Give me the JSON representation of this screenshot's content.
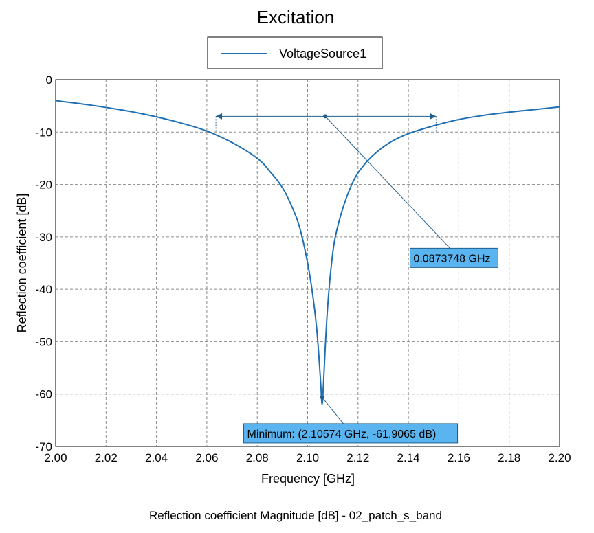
{
  "chart_data": {
    "type": "line",
    "title": "Excitation",
    "xlabel": "Frequency [GHz]",
    "ylabel": "Reflection coefficient [dB]",
    "caption": "Reflection coefficient Magnitude [dB] - 02_patch_s_band",
    "xlim": [
      2.0,
      2.2
    ],
    "ylim": [
      -70,
      0
    ],
    "xticks": [
      2.0,
      2.02,
      2.04,
      2.06,
      2.08,
      2.1,
      2.12,
      2.14,
      2.16,
      2.18,
      2.2
    ],
    "xtick_labels": [
      "2.00",
      "2.02",
      "2.04",
      "2.06",
      "2.08",
      "2.10",
      "2.12",
      "2.14",
      "2.16",
      "2.18",
      "2.20"
    ],
    "yticks": [
      0,
      -10,
      -20,
      -30,
      -40,
      -50,
      -60,
      -70
    ],
    "ytick_labels": [
      "0",
      "-10",
      "-20",
      "-30",
      "-40",
      "-50",
      "-60",
      "-70"
    ],
    "grid": true,
    "legend": {
      "placement": "top-center",
      "entries": [
        "VoltageSource1"
      ]
    },
    "series": [
      {
        "name": "VoltageSource1",
        "color": "#1f6fb5",
        "x": [
          2.0,
          2.01,
          2.02,
          2.03,
          2.04,
          2.05,
          2.06,
          2.07,
          2.08,
          2.085,
          2.09,
          2.094,
          2.097,
          2.1,
          2.102,
          2.1035,
          2.1045,
          2.1052,
          2.10574,
          2.1063,
          2.107,
          2.108,
          2.1095,
          2.111,
          2.114,
          2.118,
          2.122,
          2.127,
          2.133,
          2.14,
          2.15,
          2.16,
          2.17,
          2.18,
          2.19,
          2.2
        ],
        "y": [
          -4.0,
          -4.6,
          -5.3,
          -6.1,
          -7.1,
          -8.3,
          -9.8,
          -12.0,
          -15.0,
          -17.5,
          -20.6,
          -24.5,
          -28.5,
          -35.0,
          -41.0,
          -47.0,
          -53.0,
          -58.0,
          -61.9065,
          -58.0,
          -51.0,
          -43.0,
          -35.0,
          -30.0,
          -24.5,
          -19.5,
          -16.5,
          -14.0,
          -11.9,
          -10.3,
          -8.8,
          -7.6,
          -6.8,
          -6.2,
          -5.7,
          -5.2
        ]
      }
    ],
    "bandwidth_marker": {
      "x_start": 2.0636,
      "x_end": 2.151,
      "y": -7.0,
      "anchor_x": 2.107,
      "label": "0.0873748 GHz",
      "label_x": 2.142,
      "label_y": -34.0,
      "color": "#1f5f8f",
      "box_fill": "#5ab4f0"
    },
    "minimum_marker": {
      "x": 2.10574,
      "y": -60.6,
      "label": "Minimum: (2.10574 GHz, -61.9065 dB)",
      "label_x": 2.076,
      "label_y": -67.5,
      "color": "#1f5f8f",
      "box_fill": "#5ab4f0"
    }
  }
}
